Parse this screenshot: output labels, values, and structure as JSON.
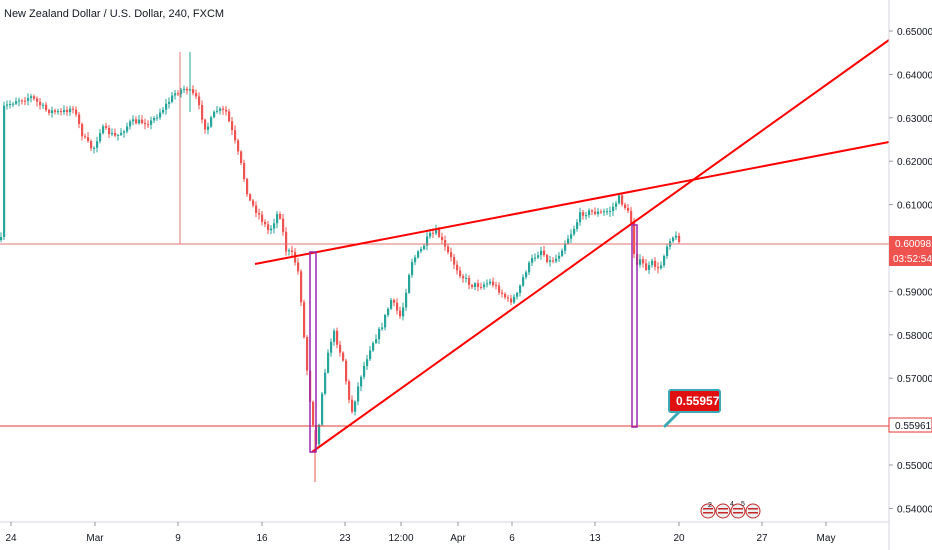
{
  "chart_data": {
    "type": "candlestick",
    "title": "New Zealand Dollar / U.S. Dollar, 240, FXCM",
    "y_ticks": [
      "0.65000",
      "0.64000",
      "0.63000",
      "0.62000",
      "0.61000",
      "0.60000",
      "0.59000",
      "0.58000",
      "0.57000",
      "0.56000",
      "0.55000",
      "0.54000"
    ],
    "x_ticks": [
      "24",
      "Mar",
      "9",
      "16",
      "23",
      "12:00",
      "Apr",
      "6",
      "13",
      "20",
      "27",
      "May"
    ],
    "ylim": [
      0.538,
      0.655
    ],
    "price_tag": {
      "value": "0.60098",
      "countdown": "03:52:54"
    },
    "support_tag": {
      "value": "0.55961"
    },
    "annotation": {
      "value": "0.55957"
    },
    "event_flags": [
      "2",
      "4",
      "5"
    ],
    "grid": false,
    "colors": {
      "up": "#26a69a",
      "down": "#ef5350",
      "trendline": "#ff0000",
      "marker": "#9c27b0",
      "hline": "#e57373"
    }
  }
}
